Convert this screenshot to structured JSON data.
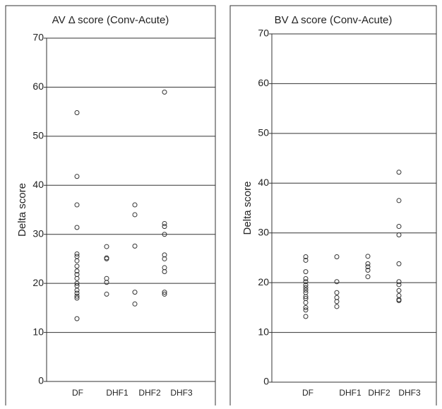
{
  "chart_data": [
    {
      "type": "strip",
      "title": "AV Δ score (Conv-Acute)",
      "y_label": "Delta score",
      "categories": [
        "DF",
        "DHF1",
        "DHF2",
        "DHF3"
      ],
      "values": [
        [
          54.8,
          41.8,
          36,
          31.4,
          26,
          25.5,
          24.6,
          23.5,
          22.5,
          21.8,
          21,
          20,
          19.5,
          18.6,
          18,
          17.4,
          17,
          12.8
        ],
        [
          27.5,
          25.2,
          25,
          21,
          20.2,
          17.8
        ],
        [
          36,
          34,
          27.6,
          18.2,
          15.8
        ],
        [
          59,
          32.2,
          31.6,
          30,
          25.8,
          25,
          23.2,
          22.4,
          18.2,
          17.8
        ]
      ],
      "ylim": [
        0,
        70
      ],
      "yticks": [
        0,
        10,
        20,
        30,
        40,
        50,
        60,
        70
      ],
      "grid": true,
      "color": "#333333"
    },
    {
      "type": "strip",
      "title": "BV Δ score (Conv-Acute)",
      "y_label": "Delta score",
      "categories": [
        "DF",
        "DHF1",
        "DHF2",
        "DHF3"
      ],
      "values": [
        [
          25.2,
          24.5,
          22.2,
          20.8,
          20.2,
          19.5,
          19,
          18.5,
          18,
          17.2,
          16.8,
          16,
          15,
          14.5,
          13.2
        ],
        [
          25.2,
          20.2,
          18,
          17,
          16.2,
          15.2
        ],
        [
          25.3,
          23.8,
          23.2,
          22.5,
          21.2
        ],
        [
          42.2,
          36.5,
          31.3,
          29.6,
          23.8,
          20.2,
          19.6,
          18.4,
          17.4,
          16.6,
          16.4
        ]
      ],
      "ylim": [
        0,
        70
      ],
      "yticks": [
        0,
        10,
        20,
        30,
        40,
        50,
        60,
        70
      ],
      "grid": true,
      "color": "#333333"
    }
  ]
}
